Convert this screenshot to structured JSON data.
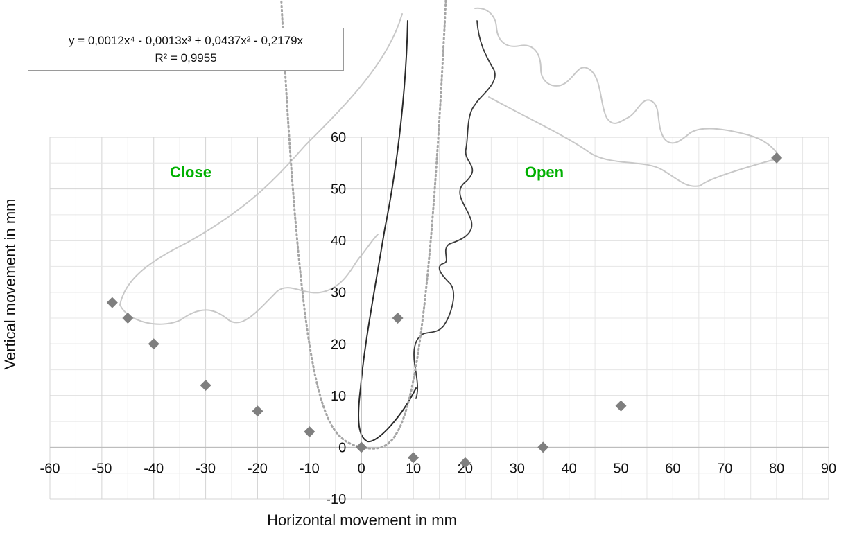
{
  "chart_data": {
    "type": "scatter",
    "xlabel": "Horizontal movement in mm",
    "ylabel": "Vertical movement in mm",
    "xlim": [
      -60,
      90
    ],
    "ylim": [
      -10,
      60
    ],
    "x_ticks": [
      "-60",
      "-50",
      "-40",
      "-30",
      "-20",
      "-10",
      "0",
      "10",
      "20",
      "30",
      "40",
      "50",
      "60",
      "70",
      "80",
      "90"
    ],
    "y_ticks": [
      "-10",
      "0",
      "10",
      "20",
      "30",
      "40",
      "50",
      "60"
    ],
    "grid": true,
    "series": [
      {
        "marker": "diamond",
        "color": "#7f7f7f",
        "x": [
          -48,
          -45,
          -40,
          -30,
          -20,
          -10,
          0,
          7,
          10,
          20,
          35,
          50,
          80
        ],
        "y": [
          28,
          25,
          20,
          12,
          7,
          3,
          0,
          25,
          -2,
          -3,
          0,
          8,
          56
        ]
      }
    ],
    "trendline": {
      "type": "polynomial",
      "style": "dotted",
      "color": "#a6a6a6",
      "coefficients": {
        "x4": 0.0012,
        "x3": -0.0013,
        "x2": 0.0437,
        "x1": -0.2179,
        "x0": 0
      },
      "equation": "y = 0,0012x⁴ - 0,0013x³ + 0,0437x² - 0,2179x",
      "r_squared": "R² = 0,9955"
    },
    "annotations": [
      {
        "text": "Close",
        "color": "#00b000"
      },
      {
        "text": "Open",
        "color": "#00b000"
      }
    ]
  }
}
